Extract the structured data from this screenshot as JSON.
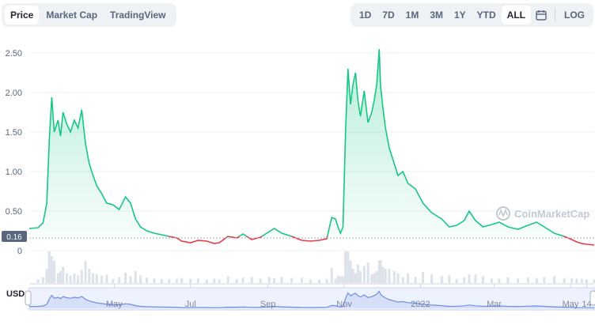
{
  "tabs": [
    {
      "label": "Price",
      "active": true
    },
    {
      "label": "Market Cap",
      "active": false
    },
    {
      "label": "TradingView",
      "active": false
    }
  ],
  "ranges": [
    {
      "label": "1D",
      "active": false
    },
    {
      "label": "7D",
      "active": false
    },
    {
      "label": "1M",
      "active": false
    },
    {
      "label": "3M",
      "active": false
    },
    {
      "label": "1Y",
      "active": false
    },
    {
      "label": "YTD",
      "active": false
    },
    {
      "label": "ALL",
      "active": true
    }
  ],
  "calendar_icon": "calendar-icon",
  "log_label": "LOG",
  "watermark": "CoinMarketCap",
  "currency_label": "USD",
  "colors": {
    "up": "#16c784",
    "down": "#ea3943",
    "grid": "#eff2f5",
    "navigator": "#6f8fe8"
  },
  "chart_data": {
    "type": "area",
    "baseline": 0.16,
    "baseline_label": "0.16",
    "ylim": [
      0,
      2.6
    ],
    "yticks": [
      0,
      0.5,
      1.0,
      1.5,
      2.0,
      2.5
    ],
    "ytick_labels": [
      "0",
      "0.50",
      "1.00",
      "1.50",
      "2.00",
      "2.50"
    ],
    "xlim": [
      "2021-02-22",
      "2022-05-20"
    ],
    "xticks": [
      {
        "date": "2021-05-01",
        "label": "May"
      },
      {
        "date": "2021-07-01",
        "label": "Jul"
      },
      {
        "date": "2021-09-01",
        "label": "Sep"
      },
      {
        "date": "2021-11-01",
        "label": "Nov"
      },
      {
        "date": "2022-01-01",
        "label": "2022"
      },
      {
        "date": "2022-03-01",
        "label": "Mar"
      },
      {
        "date": "2022-05-01",
        "label": "May"
      },
      {
        "date": "2022-05-14",
        "label": "14"
      }
    ],
    "series": [
      {
        "points": [
          [
            "2021-02-22",
            0.28
          ],
          [
            "2021-03-01",
            0.29
          ],
          [
            "2021-03-05",
            0.35
          ],
          [
            "2021-03-08",
            0.6
          ],
          [
            "2021-03-10",
            1.4
          ],
          [
            "2021-03-12",
            1.94
          ],
          [
            "2021-03-14",
            1.5
          ],
          [
            "2021-03-17",
            1.65
          ],
          [
            "2021-03-19",
            1.45
          ],
          [
            "2021-03-21",
            1.75
          ],
          [
            "2021-03-24",
            1.6
          ],
          [
            "2021-03-27",
            1.5
          ],
          [
            "2021-03-30",
            1.65
          ],
          [
            "2021-04-02",
            1.55
          ],
          [
            "2021-04-05",
            1.78
          ],
          [
            "2021-04-08",
            1.35
          ],
          [
            "2021-04-11",
            1.1
          ],
          [
            "2021-04-14",
            0.95
          ],
          [
            "2021-04-17",
            0.82
          ],
          [
            "2021-04-21",
            0.72
          ],
          [
            "2021-04-25",
            0.6
          ],
          [
            "2021-04-30",
            0.58
          ],
          [
            "2021-05-05",
            0.52
          ],
          [
            "2021-05-10",
            0.68
          ],
          [
            "2021-05-14",
            0.6
          ],
          [
            "2021-05-18",
            0.4
          ],
          [
            "2021-05-22",
            0.3
          ],
          [
            "2021-05-27",
            0.25
          ],
          [
            "2021-06-02",
            0.22
          ],
          [
            "2021-06-08",
            0.2
          ],
          [
            "2021-06-14",
            0.18
          ],
          [
            "2021-06-20",
            0.16
          ],
          [
            "2021-06-24",
            0.12
          ],
          [
            "2021-07-01",
            0.1
          ],
          [
            "2021-07-07",
            0.13
          ],
          [
            "2021-07-14",
            0.12
          ],
          [
            "2021-07-20",
            0.09
          ],
          [
            "2021-07-24",
            0.1
          ],
          [
            "2021-07-31",
            0.18
          ],
          [
            "2021-08-07",
            0.16
          ],
          [
            "2021-08-12",
            0.21
          ],
          [
            "2021-08-19",
            0.14
          ],
          [
            "2021-08-26",
            0.17
          ],
          [
            "2021-09-02",
            0.24
          ],
          [
            "2021-09-06",
            0.28
          ],
          [
            "2021-09-12",
            0.22
          ],
          [
            "2021-09-20",
            0.18
          ],
          [
            "2021-09-28",
            0.13
          ],
          [
            "2021-10-05",
            0.12
          ],
          [
            "2021-10-12",
            0.13
          ],
          [
            "2021-10-18",
            0.15
          ],
          [
            "2021-10-22",
            0.42
          ],
          [
            "2021-10-25",
            0.4
          ],
          [
            "2021-10-27",
            0.3
          ],
          [
            "2021-10-29",
            0.22
          ],
          [
            "2021-10-31",
            0.3
          ],
          [
            "2021-11-02",
            1.5
          ],
          [
            "2021-11-04",
            2.3
          ],
          [
            "2021-11-06",
            1.85
          ],
          [
            "2021-11-08",
            2.1
          ],
          [
            "2021-11-10",
            2.25
          ],
          [
            "2021-11-12",
            1.9
          ],
          [
            "2021-11-14",
            1.7
          ],
          [
            "2021-11-17",
            2.02
          ],
          [
            "2021-11-20",
            1.62
          ],
          [
            "2021-11-23",
            1.75
          ],
          [
            "2021-11-25",
            1.9
          ],
          [
            "2021-11-27",
            2.1
          ],
          [
            "2021-11-29",
            2.55
          ],
          [
            "2021-11-30",
            2.1
          ],
          [
            "2021-12-02",
            1.8
          ],
          [
            "2021-12-04",
            1.55
          ],
          [
            "2021-12-07",
            1.3
          ],
          [
            "2021-12-11",
            1.1
          ],
          [
            "2021-12-14",
            0.95
          ],
          [
            "2021-12-18",
            1.0
          ],
          [
            "2021-12-22",
            0.85
          ],
          [
            "2021-12-28",
            0.78
          ],
          [
            "2022-01-03",
            0.6
          ],
          [
            "2022-01-10",
            0.48
          ],
          [
            "2022-01-18",
            0.4
          ],
          [
            "2022-01-24",
            0.3
          ],
          [
            "2022-01-30",
            0.32
          ],
          [
            "2022-02-05",
            0.38
          ],
          [
            "2022-02-09",
            0.5
          ],
          [
            "2022-02-14",
            0.38
          ],
          [
            "2022-02-20",
            0.3
          ],
          [
            "2022-02-27",
            0.33
          ],
          [
            "2022-03-05",
            0.36
          ],
          [
            "2022-03-12",
            0.3
          ],
          [
            "2022-03-20",
            0.27
          ],
          [
            "2022-03-28",
            0.32
          ],
          [
            "2022-04-04",
            0.36
          ],
          [
            "2022-04-10",
            0.3
          ],
          [
            "2022-04-18",
            0.22
          ],
          [
            "2022-04-26",
            0.18
          ],
          [
            "2022-05-02",
            0.14
          ],
          [
            "2022-05-06",
            0.11
          ],
          [
            "2022-05-10",
            0.09
          ],
          [
            "2022-05-14",
            0.08
          ],
          [
            "2022-05-20",
            0.07
          ]
        ]
      }
    ]
  }
}
